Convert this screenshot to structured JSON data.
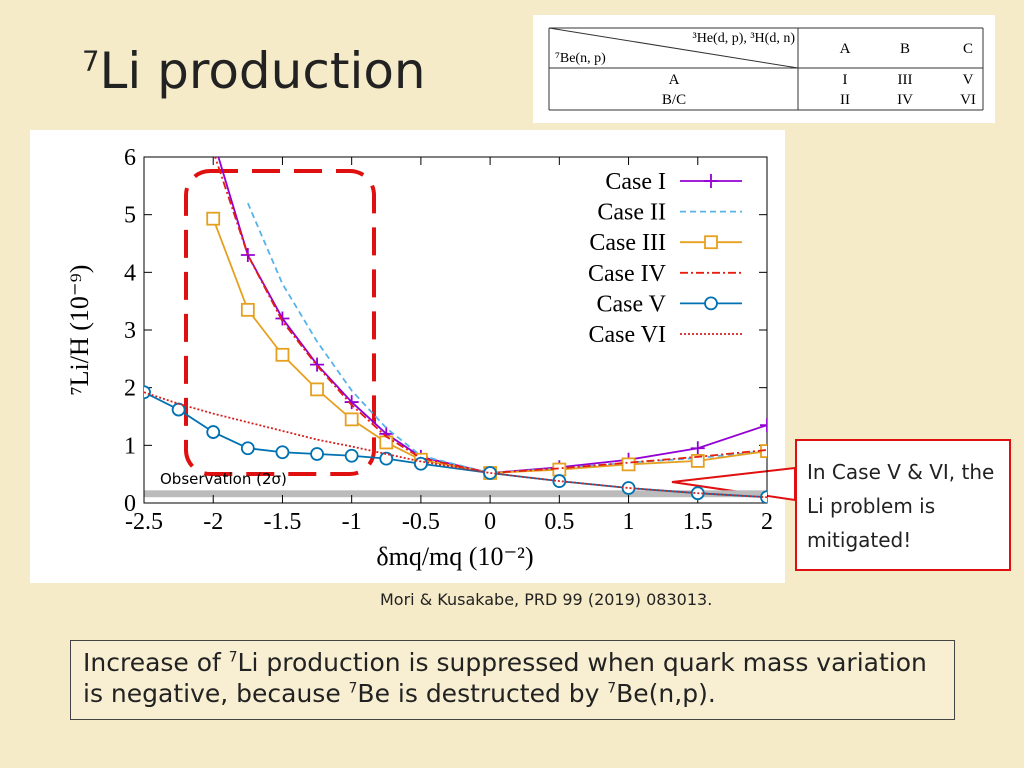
{
  "slide_title": {
    "sup": "7",
    "text": "Li production"
  },
  "table": {
    "corner_top": "³He(d, p), ³H(d, n)",
    "corner_bottom": "⁷Be(n, p)",
    "columns": [
      "A",
      "B",
      "C"
    ],
    "rows": [
      {
        "head": "A",
        "cells": [
          "I",
          "III",
          "V"
        ]
      },
      {
        "head": "B/C",
        "cells": [
          "II",
          "IV",
          "VI"
        ]
      }
    ]
  },
  "chart_data": {
    "type": "line",
    "xlabel": "δmq/mq (10⁻²)",
    "ylabel": "⁷Li/H (10⁻⁹)",
    "x": [
      -2.5,
      -2.25,
      -2,
      -1.75,
      -1.5,
      -1.25,
      -1,
      -0.75,
      -0.5,
      0,
      0.5,
      1,
      1.5,
      2
    ],
    "xlim": [
      -2.5,
      2
    ],
    "xticks": [
      -2.5,
      -2,
      -1.5,
      -1,
      -0.5,
      0,
      0.5,
      1,
      1.5,
      2
    ],
    "ylim": [
      0,
      6
    ],
    "yticks": [
      0,
      1,
      2,
      3,
      4,
      5,
      6
    ],
    "legend": "upper right",
    "series": [
      {
        "name": "Case I",
        "color": "#9400d3",
        "dash": "solid",
        "marker": "plus",
        "values": [
          null,
          null,
          6.3,
          4.3,
          3.2,
          2.4,
          1.75,
          1.2,
          0.8,
          0.52,
          0.62,
          0.75,
          0.95,
          1.35
        ]
      },
      {
        "name": "Case II",
        "color": "#56b4e9",
        "dash": "dashed",
        "marker": null,
        "values": [
          null,
          null,
          null,
          5.2,
          3.8,
          2.8,
          1.95,
          1.3,
          0.82,
          0.52,
          0.6,
          0.7,
          0.78,
          0.9
        ]
      },
      {
        "name": "Case III",
        "color": "#e6a020",
        "dash": "solid",
        "marker": "square",
        "values": [
          null,
          null,
          4.93,
          3.35,
          2.57,
          1.97,
          1.45,
          1.05,
          0.75,
          0.52,
          0.58,
          0.67,
          0.73,
          0.9
        ]
      },
      {
        "name": "Case IV",
        "color": "#e51e10",
        "dash": "dashdot",
        "marker": null,
        "values": [
          null,
          null,
          6.1,
          4.3,
          3.15,
          2.38,
          1.7,
          1.15,
          0.78,
          0.52,
          0.6,
          0.7,
          0.8,
          0.92
        ]
      },
      {
        "name": "Case V",
        "color": "#0072b2",
        "dash": "solid",
        "marker": "circle",
        "values": [
          1.92,
          1.62,
          1.23,
          0.95,
          0.88,
          0.85,
          0.82,
          0.77,
          0.68,
          0.52,
          0.38,
          0.26,
          0.17,
          0.1
        ]
      },
      {
        "name": "Case VI",
        "color": "#d62020",
        "dash": "dotted",
        "marker": null,
        "values": [
          1.92,
          1.72,
          1.55,
          1.4,
          1.25,
          1.1,
          0.98,
          0.85,
          0.72,
          0.52,
          0.38,
          0.26,
          0.17,
          0.1
        ]
      }
    ],
    "observation": {
      "label": "Observation (2σ)",
      "range": [
        0.1,
        0.22
      ],
      "color": "#bbbbbb"
    }
  },
  "callout": "In Case V & VI, the Li problem is mitigated!",
  "citation": "Mori & Kusakabe, PRD 99 (2019) 083013.",
  "footer": {
    "segments": [
      {
        "text": "Increase of "
      },
      {
        "sup": "7"
      },
      {
        "text": "Li production is suppressed when quark mass variation is negative, because "
      },
      {
        "sup": "7"
      },
      {
        "text": "Be is destructed by "
      },
      {
        "sup": "7"
      },
      {
        "text": "Be(n,p)."
      }
    ]
  }
}
